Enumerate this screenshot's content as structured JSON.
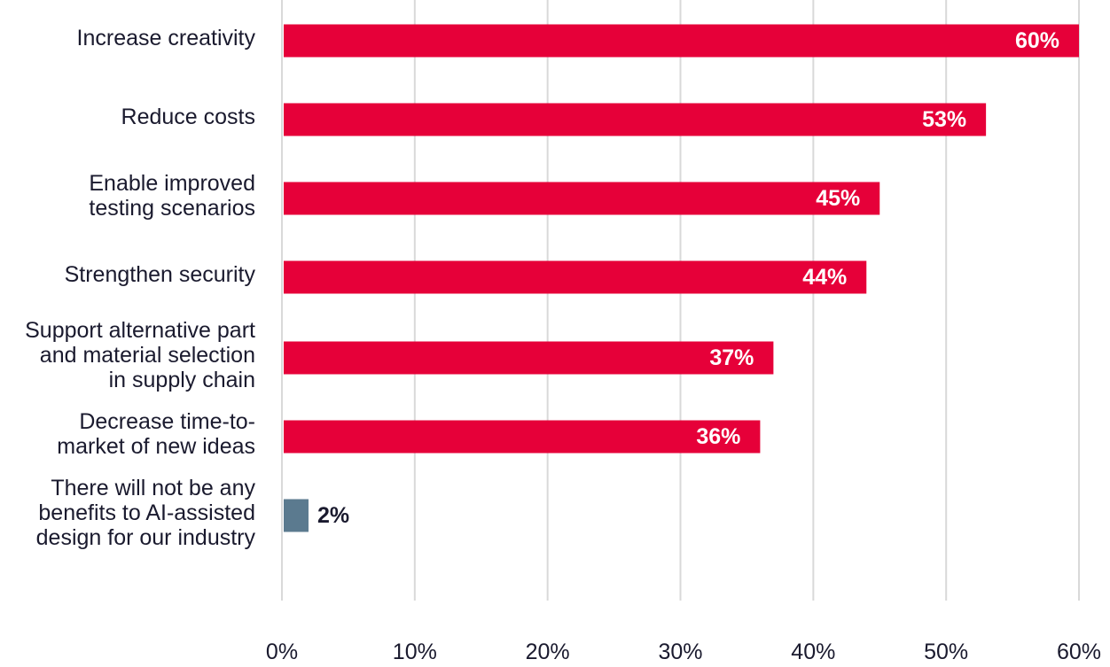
{
  "chart_data": {
    "type": "bar",
    "orientation": "horizontal",
    "categories": [
      "Increase creativity",
      "Reduce costs",
      "Enable improved\ntesting scenarios",
      "Strengthen security",
      "Support alternative part\nand material selection\nin supply chain",
      "Decrease time-to-\nmarket of new ideas",
      "There will not be any\nbenefits to AI-assisted\ndesign for our industry"
    ],
    "values": [
      60,
      53,
      45,
      44,
      37,
      36,
      2
    ],
    "value_labels": [
      "60%",
      "53%",
      "45%",
      "44%",
      "37%",
      "36%",
      "2%"
    ],
    "x_ticks": [
      "0%",
      "10%",
      "20%",
      "30%",
      "40%",
      "50%",
      "60%"
    ],
    "xlim": [
      0,
      60
    ],
    "grid": true,
    "colors": {
      "primary": "#e60039",
      "secondary": "#5b7a8f",
      "label_inside": "#ffffff",
      "label_outside": "#1a1a2e",
      "grid": "#d9d9d9"
    }
  }
}
